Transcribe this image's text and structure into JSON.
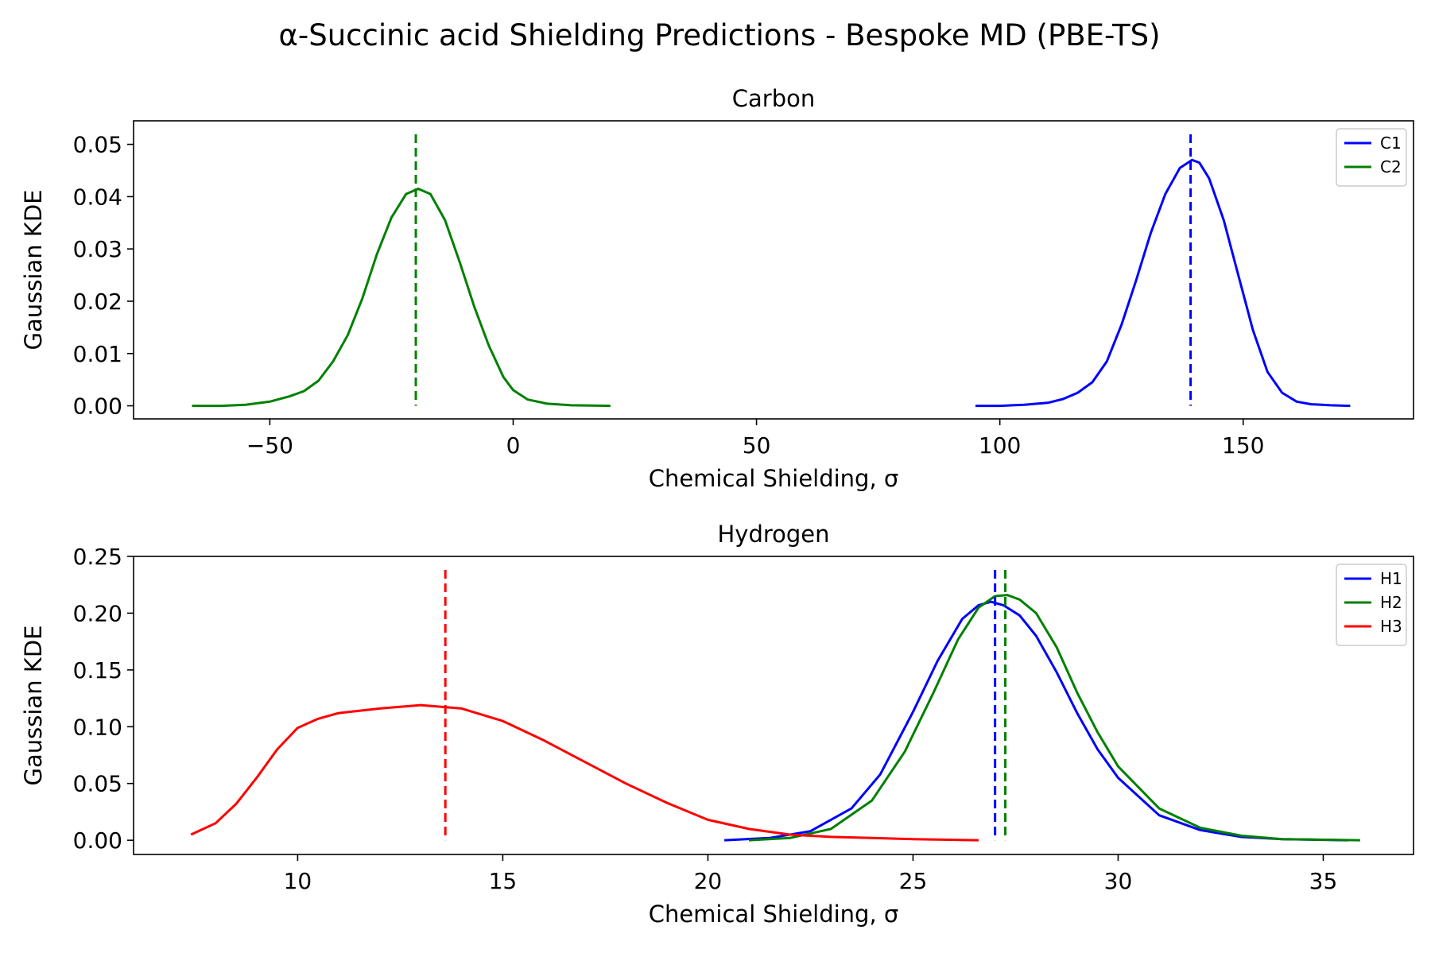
{
  "figure": {
    "title": "α-Succinic acid Shielding Predictions - Bespoke MD (PBE-TS)"
  },
  "chart_data": [
    {
      "type": "line",
      "title": "Carbon",
      "xlabel": "Chemical Shielding, σ",
      "ylabel": "Gaussian KDE",
      "xlim": [
        -78,
        185
      ],
      "ylim": [
        -0.0025,
        0.0545
      ],
      "xticks": [
        -50,
        0,
        50,
        100,
        150
      ],
      "xtick_labels": [
        "−50",
        "0",
        "50",
        "100",
        "150"
      ],
      "yticks": [
        0.0,
        0.01,
        0.02,
        0.03,
        0.04,
        0.05
      ],
      "ytick_labels": [
        "0.00",
        "0.01",
        "0.02",
        "0.03",
        "0.04",
        "0.05"
      ],
      "legend_position": "top-right",
      "series": [
        {
          "name": "C1",
          "color": "#0000ff",
          "x": [
            95,
            100,
            105,
            110,
            113,
            116,
            119,
            122,
            125,
            128,
            131,
            134,
            137,
            139.5,
            141,
            143,
            146,
            149,
            152,
            155,
            158,
            161,
            164,
            168,
            172
          ],
          "y": [
            0.0,
            0.0,
            0.0002,
            0.0006,
            0.0013,
            0.0025,
            0.0045,
            0.0085,
            0.0155,
            0.024,
            0.033,
            0.0405,
            0.0455,
            0.047,
            0.0465,
            0.0435,
            0.0355,
            0.025,
            0.0145,
            0.0065,
            0.0025,
            0.0008,
            0.0003,
            0.0001,
            0.0
          ]
        },
        {
          "name": "C2",
          "color": "#008000",
          "x": [
            -66,
            -60,
            -55,
            -50,
            -46,
            -43,
            -40,
            -37,
            -34,
            -31,
            -28,
            -25,
            -22,
            -19.5,
            -17,
            -14,
            -11,
            -8,
            -5,
            -2,
            0,
            3,
            7,
            12,
            20
          ],
          "y": [
            0.0,
            0.0,
            0.0002,
            0.0008,
            0.0018,
            0.0028,
            0.0048,
            0.0085,
            0.0135,
            0.0205,
            0.029,
            0.036,
            0.0405,
            0.0415,
            0.0405,
            0.0355,
            0.0275,
            0.019,
            0.0115,
            0.0055,
            0.003,
            0.0012,
            0.0004,
            0.0001,
            0.0
          ]
        }
      ],
      "mean_lines": [
        {
          "series": "C1",
          "x": 139.2,
          "color": "#0000ff"
        },
        {
          "series": "C2",
          "x": -20.0,
          "color": "#008000"
        }
      ]
    },
    {
      "type": "line",
      "title": "Hydrogen",
      "xlabel": "Chemical Shielding, σ",
      "ylabel": "Gaussian KDE",
      "xlim": [
        6.0,
        37.2
      ],
      "ylim": [
        -0.0125,
        0.25
      ],
      "xticks": [
        10,
        15,
        20,
        25,
        30,
        35
      ],
      "xtick_labels": [
        "10",
        "15",
        "20",
        "25",
        "30",
        "35"
      ],
      "yticks": [
        0.0,
        0.05,
        0.1,
        0.15,
        0.2,
        0.25
      ],
      "ytick_labels": [
        "0.00",
        "0.05",
        "0.10",
        "0.15",
        "0.20",
        "0.25"
      ],
      "legend_position": "top-right",
      "series": [
        {
          "name": "H1",
          "color": "#0000ff",
          "x": [
            20.4,
            21.5,
            22.5,
            23.5,
            24.2,
            25.0,
            25.6,
            26.2,
            26.6,
            26.9,
            27.2,
            27.6,
            28.0,
            28.5,
            29.0,
            29.5,
            30.0,
            31.0,
            32.0,
            33.0,
            34.0,
            35.6
          ],
          "y": [
            0.0,
            0.002,
            0.008,
            0.028,
            0.058,
            0.113,
            0.158,
            0.195,
            0.207,
            0.21,
            0.207,
            0.198,
            0.18,
            0.148,
            0.112,
            0.08,
            0.055,
            0.022,
            0.009,
            0.003,
            0.001,
            0.0
          ]
        },
        {
          "name": "H2",
          "color": "#008000",
          "x": [
            21.0,
            22.0,
            23.0,
            24.0,
            24.8,
            25.5,
            26.1,
            26.6,
            27.0,
            27.3,
            27.6,
            28.0,
            28.5,
            29.0,
            29.5,
            30.0,
            31.0,
            32.0,
            33.0,
            34.0,
            35.9
          ],
          "y": [
            0.0,
            0.002,
            0.01,
            0.035,
            0.078,
            0.13,
            0.177,
            0.205,
            0.215,
            0.216,
            0.212,
            0.2,
            0.17,
            0.13,
            0.095,
            0.065,
            0.028,
            0.011,
            0.004,
            0.001,
            0.0
          ]
        },
        {
          "name": "H3",
          "color": "#ff0000",
          "x": [
            7.4,
            8.0,
            8.5,
            9.0,
            9.5,
            10.0,
            10.5,
            11.0,
            12.0,
            13.0,
            14.0,
            15.0,
            16.0,
            17.0,
            18.0,
            19.0,
            20.0,
            21.0,
            22.0,
            23.0,
            24.0,
            25.0,
            26.6
          ],
          "y": [
            0.005,
            0.015,
            0.032,
            0.055,
            0.08,
            0.099,
            0.107,
            0.112,
            0.116,
            0.119,
            0.116,
            0.105,
            0.088,
            0.069,
            0.05,
            0.033,
            0.018,
            0.01,
            0.005,
            0.003,
            0.002,
            0.001,
            0.0
          ]
        }
      ],
      "mean_lines": [
        {
          "series": "H1",
          "x": 27.0,
          "color": "#0000ff"
        },
        {
          "series": "H2",
          "x": 27.25,
          "color": "#008000"
        },
        {
          "series": "H3",
          "x": 13.6,
          "color": "#ff0000"
        }
      ]
    }
  ]
}
